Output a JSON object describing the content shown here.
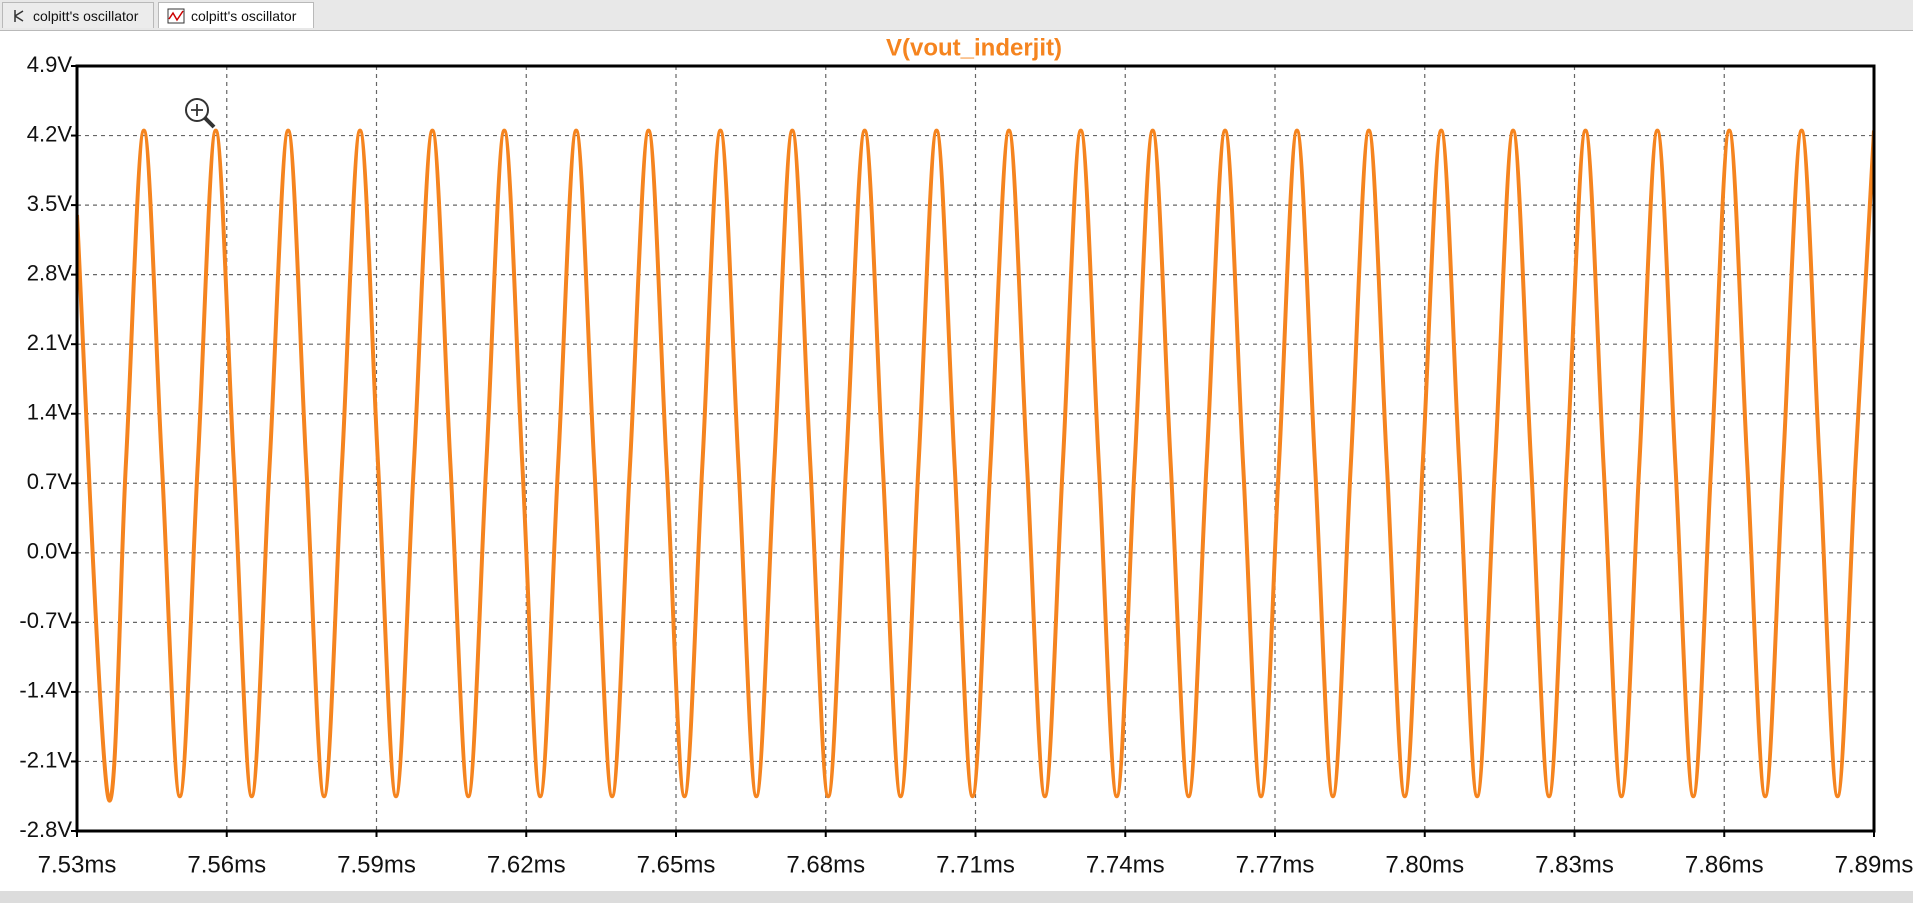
{
  "tabs": [
    "colpitt's oscillator",
    "colpitt's oscillator"
  ],
  "chart_data": {
    "type": "line",
    "title": "V(vout_inderjit)",
    "color": "#f5841f",
    "grid": true,
    "xlim": [
      7.53,
      7.89
    ],
    "xticks": [
      {
        "value": 7.53,
        "label": "7.53ms"
      },
      {
        "value": 7.56,
        "label": "7.56ms"
      },
      {
        "value": 7.59,
        "label": "7.59ms"
      },
      {
        "value": 7.62,
        "label": "7.62ms"
      },
      {
        "value": 7.65,
        "label": "7.65ms"
      },
      {
        "value": 7.68,
        "label": "7.68ms"
      },
      {
        "value": 7.71,
        "label": "7.71ms"
      },
      {
        "value": 7.74,
        "label": "7.74ms"
      },
      {
        "value": 7.77,
        "label": "7.77ms"
      },
      {
        "value": 7.8,
        "label": "7.80ms"
      },
      {
        "value": 7.83,
        "label": "7.83ms"
      },
      {
        "value": 7.86,
        "label": "7.86ms"
      },
      {
        "value": 7.89,
        "label": "7.89ms"
      }
    ],
    "ylim": [
      -2.8,
      4.9
    ],
    "yticks": [
      {
        "value": 4.9,
        "label": "4.9V"
      },
      {
        "value": 4.2,
        "label": "4.2V"
      },
      {
        "value": 3.5,
        "label": "3.5V"
      },
      {
        "value": 2.8,
        "label": "2.8V"
      },
      {
        "value": 2.1,
        "label": "2.1V"
      },
      {
        "value": 1.4,
        "label": "1.4V"
      },
      {
        "value": 0.7,
        "label": "0.7V"
      },
      {
        "value": 0.0,
        "label": "0.0V"
      },
      {
        "value": -0.7,
        "label": "-0.7V"
      },
      {
        "value": -1.4,
        "label": "-1.4V"
      },
      {
        "value": -2.1,
        "label": "-2.1V"
      },
      {
        "value": -2.8,
        "label": "-2.8V"
      }
    ],
    "x": [
      7.53,
      7.5362,
      7.5398,
      7.5434,
      7.547,
      7.5506,
      7.5542,
      7.5578,
      7.5614,
      7.565,
      7.5686,
      7.5723,
      7.5759,
      7.5795,
      7.5831,
      7.5867,
      7.5903,
      7.5939,
      7.5975,
      7.6012,
      7.6048,
      7.6084,
      7.612,
      7.6156,
      7.6192,
      7.6228,
      7.6264,
      7.63,
      7.6336,
      7.6372,
      7.6408,
      7.6445,
      7.6481,
      7.6517,
      7.6553,
      7.6589,
      7.6625,
      7.6661,
      7.6697,
      7.6733,
      7.6769,
      7.6805,
      7.6841,
      7.6878,
      7.6914,
      7.695,
      7.6986,
      7.7022,
      7.7058,
      7.7094,
      7.713,
      7.7167,
      7.7203,
      7.7239,
      7.7275,
      7.7311,
      7.7347,
      7.7383,
      7.7419,
      7.7455,
      7.7491,
      7.7527,
      7.7563,
      7.76,
      7.7636,
      7.7672,
      7.7708,
      7.7744,
      7.778,
      7.7816,
      7.7852,
      7.7888,
      7.7924,
      7.796,
      7.7996,
      7.8033,
      7.8069,
      7.8105,
      7.8141,
      7.8177,
      7.8213,
      7.8249,
      7.8285,
      7.8322,
      7.8358,
      7.8394,
      7.843,
      7.8466,
      7.8502,
      7.8538,
      7.8574,
      7.861,
      7.8646,
      7.8682,
      7.8718,
      7.8755,
      7.8791,
      7.8827,
      7.8863,
      7.89
    ],
    "values": [
      3.4,
      -2.45,
      0.9,
      4.25,
      0.9,
      -2.45,
      0.9,
      4.25,
      0.9,
      -2.45,
      0.9,
      4.25,
      0.9,
      -2.45,
      0.9,
      4.25,
      0.9,
      -2.45,
      0.9,
      4.25,
      0.9,
      -2.45,
      0.9,
      4.25,
      0.9,
      -2.45,
      0.9,
      4.25,
      0.9,
      -2.45,
      0.9,
      4.25,
      0.9,
      -2.45,
      0.9,
      4.25,
      0.9,
      -2.45,
      0.9,
      4.25,
      0.9,
      -2.45,
      0.9,
      4.25,
      0.9,
      -2.45,
      0.9,
      4.25,
      0.9,
      -2.45,
      0.9,
      4.25,
      0.9,
      -2.45,
      0.9,
      4.25,
      0.9,
      -2.45,
      0.9,
      4.25,
      0.9,
      -2.45,
      0.9,
      4.25,
      0.9,
      -2.45,
      0.9,
      4.25,
      0.9,
      -2.45,
      0.9,
      4.25,
      0.9,
      -2.45,
      0.9,
      4.25,
      0.9,
      -2.45,
      0.9,
      4.25,
      0.9,
      -2.45,
      0.9,
      4.25,
      0.9,
      -2.45,
      0.9,
      4.25,
      0.9,
      -2.45,
      0.9,
      4.25,
      0.9,
      -2.45,
      0.9,
      4.25,
      0.9,
      -2.45,
      0.9,
      4.25
    ]
  }
}
